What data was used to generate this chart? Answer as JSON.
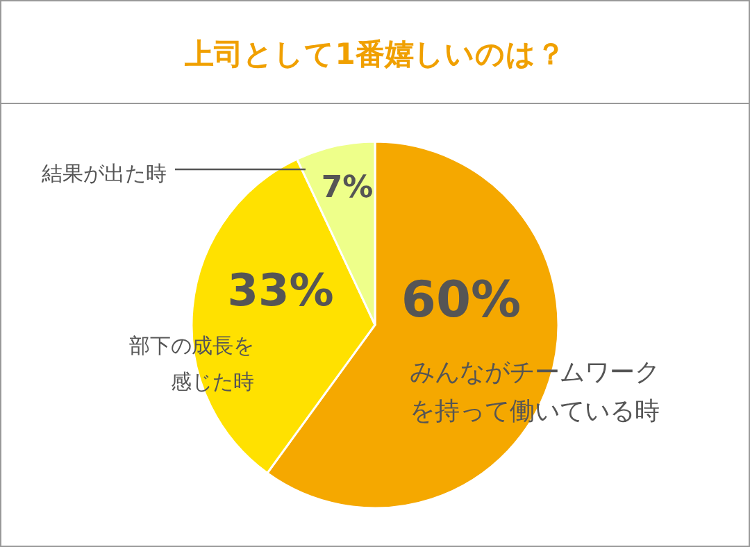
{
  "chart_data": {
    "type": "pie",
    "title": "上司として1番嬉しいのは？",
    "categories": [
      "みんながチームワークを持って働いている時",
      "部下の成長を感じた時",
      "結果が出た時"
    ],
    "values": [
      60,
      33,
      7
    ],
    "colors": [
      "#f5a800",
      "#ffe100",
      "#eeff8a"
    ],
    "value_labels": [
      "60%",
      "33%",
      "7%"
    ],
    "legend": false
  }
}
